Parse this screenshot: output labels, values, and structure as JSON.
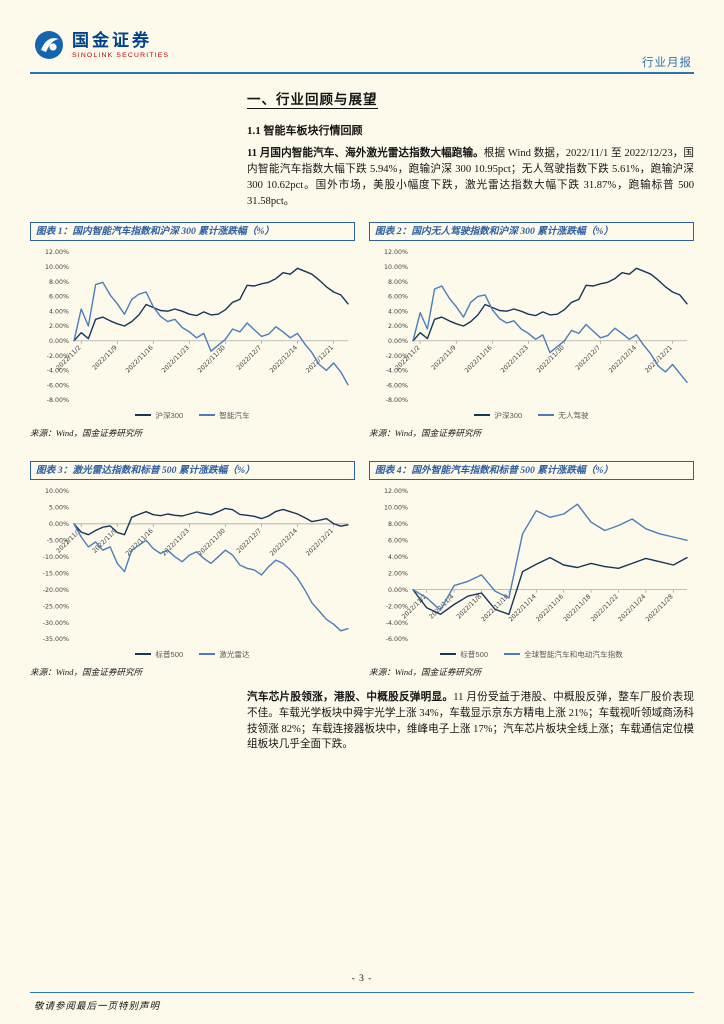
{
  "header": {
    "logo_cn": "国金证券",
    "logo_en": "SINOLINK SECURITIES",
    "report_type": "行业月报"
  },
  "section": {
    "title": "一、行业回顾与展望",
    "subtitle": "1.1 智能车板块行情回顾"
  },
  "para1": {
    "lead": "11 月国内智能汽车、海外激光雷达指数大幅跑输。",
    "body": "根据 Wind 数据，2022/11/1 至 2022/12/23，国内智能汽车指数大幅下跌 5.94%，跑输沪深 300 10.95pct；无人驾驶指数下跌 5.61%，跑输沪深 300 10.62pct。国外市场，美股小幅度下跌，激光雷达指数大幅下跌 31.87%，跑输标普 500 31.58pct。"
  },
  "para2": {
    "lead": "汽车芯片股领涨，港股、中概股反弹明显。",
    "body": "11 月份受益于港股、中概股反弹，整车厂股价表现不佳。车载光学板块中舜宇光学上涨 34%，车载显示京东方精电上涨 21%；车载视听领域商汤科技领涨 82%；车载连接器板块中，维峰电子上涨 17%；汽车芯片板块全线上涨；车载通信定位模组板块几乎全面下跌。"
  },
  "footer": {
    "page_number": "- 3 -",
    "disclaimer": "敬请参阅最后一页特别声明"
  },
  "colors": {
    "accent_blue": "#2E74B5",
    "title_blue": "#2E5FA3",
    "series_dark": "#17365D",
    "series_light": "#4A7EBB",
    "logo_red": "#C00000",
    "page_background": "#FDF9EB"
  },
  "chart_data": [
    {
      "type": "line",
      "title": "图表 1：国内智能汽车指数和沪深 300 累计涨跌幅（%）",
      "source": "来源：Wind，国金证券研究所",
      "ylim": [
        -8,
        12
      ],
      "y_step": 2,
      "x_labels": [
        "2022/11/2",
        "2022/11/9",
        "2022/11/16",
        "2022/11/23",
        "2022/11/30",
        "2022/12/7",
        "2022/12/14",
        "2022/12/21"
      ],
      "x_label_indices": [
        1,
        6,
        11,
        16,
        21,
        26,
        31,
        36
      ],
      "series": [
        {
          "name": "沪深300",
          "color": "#17365D",
          "values": [
            0,
            1.1,
            0.3,
            2.9,
            3.2,
            2.7,
            2.3,
            2.0,
            2.6,
            3.5,
            4.9,
            4.5,
            4.1,
            4.0,
            4.3,
            4.0,
            3.6,
            3.4,
            3.9,
            3.5,
            3.6,
            4.2,
            5.2,
            5.6,
            7.5,
            7.4,
            7.7,
            7.9,
            8.4,
            9.2,
            9.0,
            9.8,
            9.4,
            9.0,
            8.2,
            7.3,
            6.6,
            6.2,
            5.0
          ]
        },
        {
          "name": "智能汽车",
          "color": "#4A7EBB",
          "values": [
            0,
            4.3,
            2.0,
            7.6,
            7.9,
            6.2,
            5.0,
            3.6,
            5.6,
            6.3,
            6.6,
            4.6,
            3.3,
            2.6,
            2.9,
            1.8,
            1.2,
            0.4,
            1.0,
            -1.4,
            -0.6,
            0.2,
            1.6,
            1.2,
            2.4,
            1.5,
            0.6,
            0.9,
            1.9,
            1.2,
            0.4,
            1.0,
            -0.4,
            -1.6,
            -3.2,
            -4.0,
            -3.0,
            -4.2,
            -5.94
          ]
        }
      ]
    },
    {
      "type": "line",
      "title": "图表 2：国内无人驾驶指数和沪深 300 累计涨跌幅（%）",
      "source": "来源：Wind，国金证券研究所",
      "ylim": [
        -8,
        12
      ],
      "y_step": 2,
      "x_labels": [
        "2022/11/2",
        "2022/11/9",
        "2022/11/16",
        "2022/11/23",
        "2022/11/30",
        "2022/12/7",
        "2022/12/14",
        "2022/12/21"
      ],
      "x_label_indices": [
        1,
        6,
        11,
        16,
        21,
        26,
        31,
        36
      ],
      "series": [
        {
          "name": "沪深300",
          "color": "#17365D",
          "values": [
            0,
            1.1,
            0.3,
            2.9,
            3.2,
            2.7,
            2.3,
            2.0,
            2.6,
            3.5,
            4.9,
            4.5,
            4.1,
            4.0,
            4.3,
            4.0,
            3.6,
            3.4,
            3.9,
            3.5,
            3.6,
            4.2,
            5.2,
            5.6,
            7.5,
            7.4,
            7.7,
            7.9,
            8.4,
            9.2,
            9.0,
            9.8,
            9.4,
            9.0,
            8.2,
            7.3,
            6.6,
            6.2,
            5.0
          ]
        },
        {
          "name": "无人驾驶",
          "color": "#4A7EBB",
          "values": [
            0,
            3.8,
            1.6,
            7.0,
            7.4,
            5.8,
            4.6,
            3.2,
            5.2,
            6.0,
            6.2,
            4.2,
            3.0,
            2.4,
            2.7,
            1.6,
            1.0,
            0.2,
            0.8,
            -1.6,
            -0.8,
            0.0,
            1.4,
            1.0,
            2.2,
            1.3,
            0.4,
            0.7,
            1.7,
            1.0,
            0.2,
            0.8,
            -0.6,
            -1.8,
            -3.4,
            -4.2,
            -3.2,
            -4.4,
            -5.61
          ]
        }
      ]
    },
    {
      "type": "line",
      "title": "图表 3：激光雷达指数和标普 500 累计涨跌幅（%）",
      "source": "来源：Wind，国金证券研究所",
      "ylim": [
        -35,
        10
      ],
      "y_step": 5,
      "x_labels": [
        "2022/11/2",
        "2022/11/9",
        "2022/11/16",
        "2022/11/23",
        "2022/11/30",
        "2022/12/7",
        "2022/12/14",
        "2022/12/21"
      ],
      "x_label_indices": [
        1,
        6,
        11,
        16,
        21,
        26,
        31,
        36
      ],
      "series": [
        {
          "name": "标普500",
          "color": "#17365D",
          "values": [
            0,
            -2.5,
            -3.3,
            -2.0,
            -1.0,
            -0.6,
            -2.6,
            -3.3,
            2.0,
            2.9,
            3.7,
            2.8,
            2.5,
            3.0,
            2.6,
            2.4,
            3.0,
            3.6,
            3.2,
            2.8,
            3.7,
            4.7,
            4.3,
            2.9,
            2.6,
            2.3,
            1.6,
            2.4,
            3.8,
            4.4,
            3.7,
            3.0,
            1.9,
            0.7,
            1.1,
            1.6,
            0.1,
            -0.7,
            -0.29
          ]
        },
        {
          "name": "激光雷达",
          "color": "#4A7EBB",
          "values": [
            0,
            -4.0,
            -7.0,
            -5.5,
            -8.0,
            -7.0,
            -12.0,
            -14.5,
            -8.0,
            -6.5,
            -5.0,
            -7.5,
            -9.0,
            -8.0,
            -10.0,
            -11.5,
            -9.5,
            -8.5,
            -10.5,
            -12.0,
            -10.0,
            -8.0,
            -9.5,
            -12.5,
            -13.5,
            -14.0,
            -15.5,
            -13.0,
            -11.0,
            -12.0,
            -14.0,
            -16.5,
            -20.0,
            -24.0,
            -26.5,
            -29.0,
            -30.5,
            -32.5,
            -31.87
          ]
        }
      ]
    },
    {
      "type": "line",
      "title": "图表 4：国外智能汽车指数和标普 500 累计涨跌幅（%）",
      "source": "来源：Wind，国金证券研究所",
      "ylim": [
        -6,
        12
      ],
      "y_step": 2,
      "x_labels": [
        "2022/11/2",
        "2022/11/4",
        "2022/11/8",
        "2022/11/10",
        "2022/11/14",
        "2022/11/16",
        "2022/11/18",
        "2022/11/22",
        "2022/11/24",
        "2022/11/28"
      ],
      "x_label_indices": [
        1,
        3,
        5,
        7,
        9,
        11,
        13,
        15,
        17,
        19
      ],
      "series": [
        {
          "name": "标普500",
          "color": "#17365D",
          "values": [
            0,
            -2.2,
            -3.0,
            -1.8,
            -0.8,
            -0.4,
            -2.4,
            -3.0,
            2.2,
            3.1,
            3.9,
            3.0,
            2.7,
            3.2,
            2.8,
            2.6,
            3.2,
            3.8,
            3.4,
            3.0,
            3.9
          ]
        },
        {
          "name": "全球智能汽车和电动汽车指数",
          "color": "#4A7EBB",
          "values": [
            0,
            -1.0,
            -2.5,
            0.5,
            1.0,
            1.8,
            -0.2,
            -1.0,
            6.8,
            9.6,
            8.8,
            9.2,
            10.4,
            8.2,
            7.2,
            7.8,
            8.6,
            7.4,
            6.8,
            6.4,
            6.0
          ]
        }
      ]
    }
  ]
}
